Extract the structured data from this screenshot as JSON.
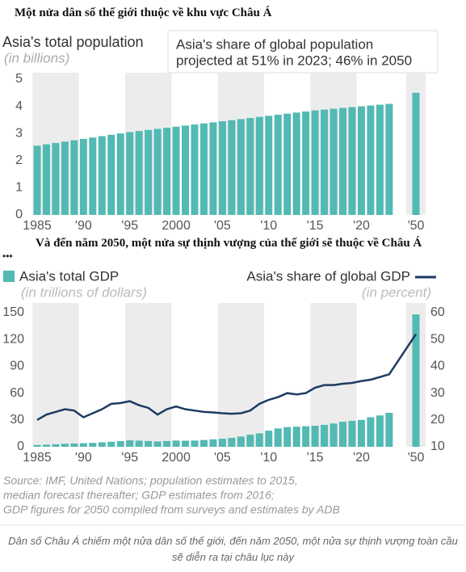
{
  "header_title": "Một nửa dân số thế giới thuộc về khu vực Châu Á",
  "chart_data": [
    {
      "type": "bar",
      "title": "Asia's total population",
      "y_label": "(in billions)",
      "annotations": [
        "Asia's share of global population",
        "projected at 51% in 2023; 46% in 2050"
      ],
      "categories": [
        "1985",
        null,
        null,
        null,
        null,
        "'90",
        null,
        null,
        null,
        null,
        "'95",
        null,
        null,
        null,
        null,
        "2000",
        null,
        null,
        null,
        null,
        "'05",
        null,
        null,
        null,
        null,
        "'10",
        null,
        null,
        null,
        null,
        "'15",
        null,
        null,
        null,
        null,
        "'20",
        null,
        null,
        null,
        "'50"
      ],
      "values": [
        2.55,
        2.6,
        2.65,
        2.7,
        2.75,
        2.8,
        2.85,
        2.9,
        2.95,
        3.0,
        3.05,
        3.09,
        3.13,
        3.17,
        3.21,
        3.25,
        3.29,
        3.33,
        3.37,
        3.41,
        3.45,
        3.49,
        3.53,
        3.57,
        3.61,
        3.65,
        3.69,
        3.73,
        3.77,
        3.81,
        3.85,
        3.88,
        3.91,
        3.94,
        3.97,
        4.0,
        4.03,
        4.06,
        4.09,
        4.5
      ],
      "color": "#52b9b3",
      "ylim": [
        0,
        5
      ],
      "yticks": [
        0,
        1,
        2,
        3,
        4,
        5
      ]
    },
    {
      "type": "bar-line",
      "title": "Và đến năm 2050, một nửa sự thịnh vượng của thế giới sẽ thuộc về Châu Á",
      "menu": "•••",
      "y_label": "(in trillions of dollars)",
      "y2_label": "(in percent)",
      "categories": [
        "1985",
        null,
        null,
        null,
        null,
        "'90",
        null,
        null,
        null,
        null,
        "'95",
        null,
        null,
        null,
        null,
        "2000",
        null,
        null,
        null,
        null,
        "'05",
        null,
        null,
        null,
        null,
        "'10",
        null,
        null,
        null,
        null,
        "'15",
        null,
        null,
        null,
        null,
        "'20",
        null,
        null,
        null,
        "'50"
      ],
      "series": [
        {
          "name": "Asia's total GDP",
          "color": "#52b9b3",
          "values": [
            2,
            2.3,
            2.8,
            3.4,
            3.7,
            4,
            4.4,
            5,
            5.6,
            6.3,
            7.2,
            6.9,
            6.5,
            5.9,
            6.4,
            7,
            6.8,
            7,
            7.6,
            8.3,
            9,
            10,
            11.5,
            13.5,
            15,
            18,
            20.5,
            22,
            22.5,
            23,
            23.5,
            24.5,
            26,
            28,
            29,
            30,
            33,
            35,
            38,
            148
          ]
        },
        {
          "name": "Asia's share of global GDP",
          "color": "#1d3b63",
          "axis": "y2",
          "values": [
            20,
            22,
            23,
            24,
            23.5,
            21,
            22.5,
            24,
            26,
            26.3,
            27,
            25.5,
            24.5,
            22,
            24,
            25,
            24,
            23.5,
            23,
            22.8,
            22.5,
            22.3,
            22.5,
            23.5,
            26,
            27.5,
            28.5,
            30,
            29.5,
            30,
            32,
            33,
            33,
            33.5,
            33.8,
            34.5,
            35,
            36,
            37,
            52
          ]
        }
      ],
      "ylim": [
        0,
        150
      ],
      "yticks": [
        0,
        30,
        60,
        90,
        120,
        150
      ],
      "y2lim": [
        10,
        60
      ],
      "y2ticks": [
        10,
        20,
        30,
        40,
        50,
        60
      ]
    }
  ],
  "source": [
    "Source: IMF, United Nations; population estimates to 2015,",
    "median forecast thereafter; GDP estimates from 2016;",
    "GDP figures for 2050 compiled from surveys and estimates by ADB"
  ],
  "caption": "Dân số Châu Á chiếm một nửa dân số thế giới, đến năm 2050, một nửa sự thịnh vượng toàn cầu sẽ diễn ra tại châu lục này"
}
